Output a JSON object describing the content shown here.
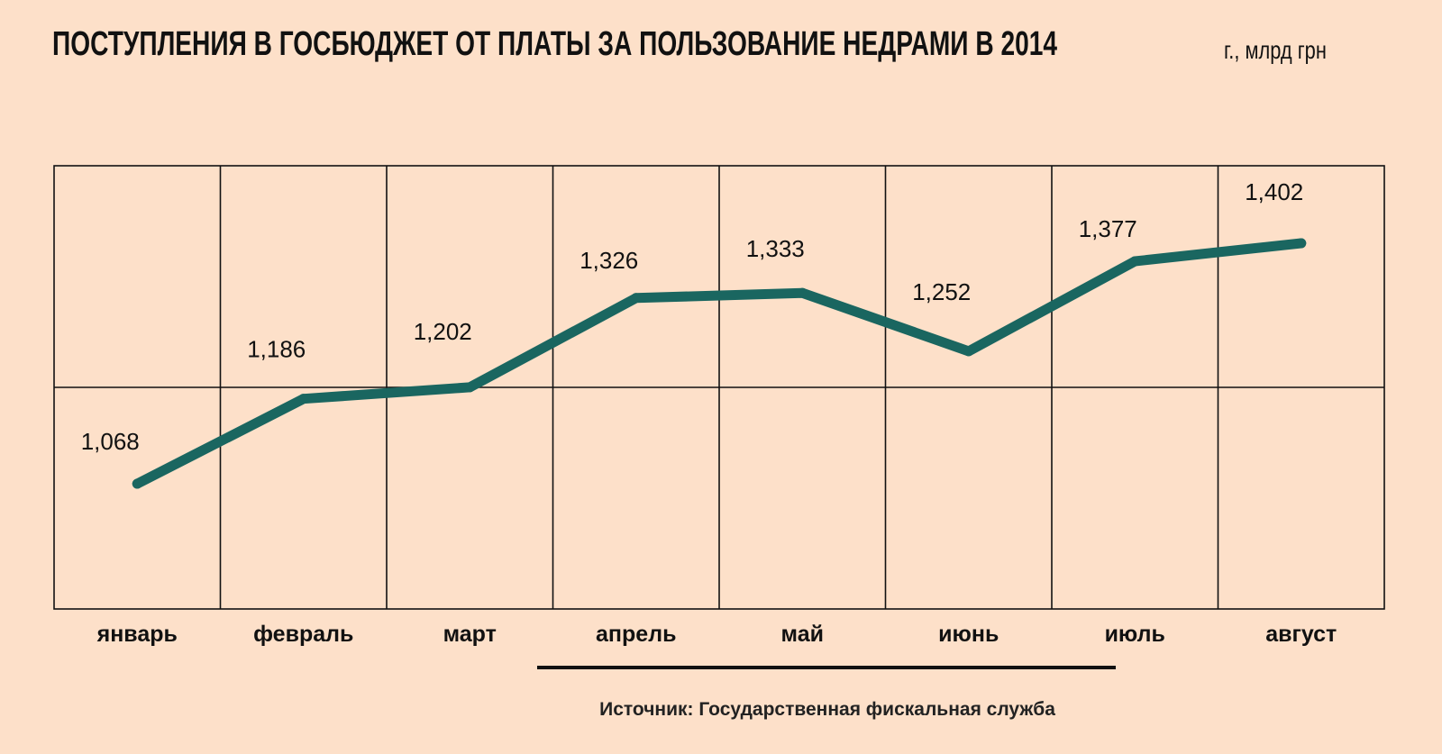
{
  "title": {
    "main": "ПОСТУПЛЕНИЯ В ГОСБЮДЖЕТ ОТ ПЛАТЫ ЗА ПОЛЬЗОВАНИЕ НЕДРАМИ В 2014",
    "unit": "г.,  млрд грн"
  },
  "source": "Источник: Государственная фискальная служба",
  "colors": {
    "line": "#1a6660",
    "grid": "#111111",
    "background": "#fde0c9"
  },
  "chart_data": {
    "type": "line",
    "categories": [
      "январь",
      "февраль",
      "март",
      "апрель",
      "май",
      "июнь",
      "июль",
      "август"
    ],
    "series": [
      {
        "values": [
          1.068,
          1.186,
          1.202,
          1.326,
          1.333,
          1.252,
          1.377,
          1.402
        ],
        "labels": [
          "1,068",
          "1,186",
          "1,202",
          "1,326",
          "1,333",
          "1,252",
          "1,377",
          "1,402"
        ]
      }
    ],
    "title": "ПОСТУПЛЕНИЯ В ГОСБЮДЖЕТ ОТ ПЛАТЫ ЗА ПОЛЬЗОВАНИЕ НЕДРАМИ В 2014 г.,  млрд грн",
    "xlabel": "",
    "ylabel": "",
    "grid": true,
    "legend": "none"
  }
}
